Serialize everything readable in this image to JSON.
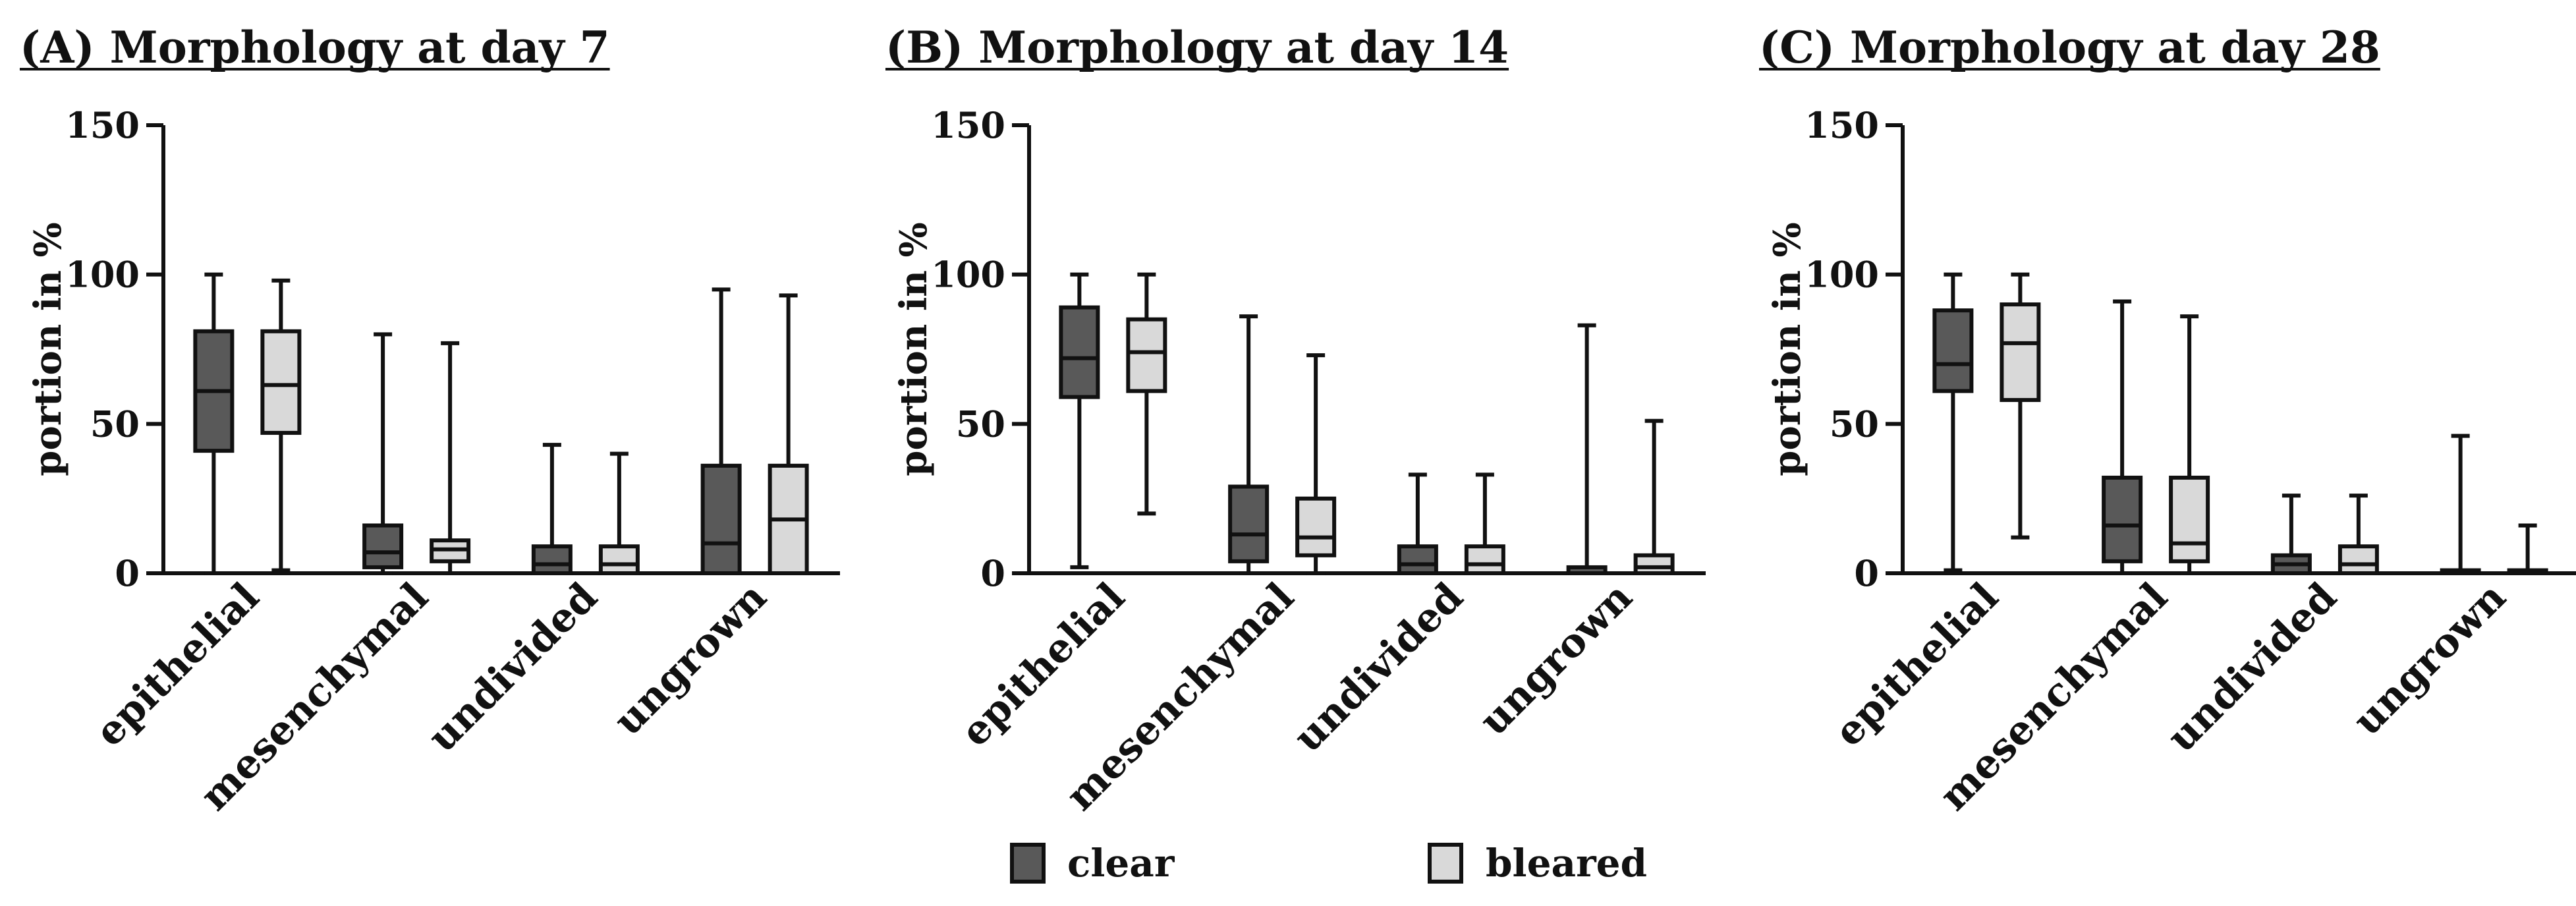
{
  "colors": {
    "clear": "#595959",
    "bleared": "#d9d9d9",
    "line": "#111111"
  },
  "chart_data": [
    {
      "type": "box",
      "title": "(A) Morphology at day 7",
      "ylabel": "portion in %",
      "ylim": [
        0,
        150
      ],
      "yticks": [
        "0",
        "50",
        "100",
        "150"
      ],
      "categories": [
        "epithelial",
        "mesenchymal",
        "undivided",
        "ungrown"
      ],
      "series": [
        {
          "name": "clear",
          "boxes": [
            {
              "min": 0,
              "q1": 41,
              "median": 61,
              "q3": 81,
              "max": 100
            },
            {
              "min": 0,
              "q1": 2,
              "median": 7,
              "q3": 16,
              "max": 80
            },
            {
              "min": 0,
              "q1": 0,
              "median": 3,
              "q3": 9,
              "max": 43
            },
            {
              "min": 0,
              "q1": 0,
              "median": 10,
              "q3": 36,
              "max": 95
            }
          ]
        },
        {
          "name": "bleared",
          "boxes": [
            {
              "min": 1,
              "q1": 47,
              "median": 63,
              "q3": 81,
              "max": 98
            },
            {
              "min": 0,
              "q1": 4,
              "median": 8,
              "q3": 11,
              "max": 77
            },
            {
              "min": 0,
              "q1": 0,
              "median": 3,
              "q3": 9,
              "max": 40
            },
            {
              "min": 0,
              "q1": 0,
              "median": 18,
              "q3": 36,
              "max": 93
            }
          ]
        }
      ]
    },
    {
      "type": "box",
      "title": "(B) Morphology at day 14",
      "ylabel": "portion in %",
      "ylim": [
        0,
        150
      ],
      "yticks": [
        "0",
        "50",
        "100",
        "150"
      ],
      "categories": [
        "epithelial",
        "mesenchymal",
        "undivided",
        "ungrown"
      ],
      "series": [
        {
          "name": "clear",
          "boxes": [
            {
              "min": 2,
              "q1": 59,
              "median": 72,
              "q3": 89,
              "max": 100
            },
            {
              "min": 0,
              "q1": 4,
              "median": 13,
              "q3": 29,
              "max": 86
            },
            {
              "min": 0,
              "q1": 0,
              "median": 3,
              "q3": 9,
              "max": 33
            },
            {
              "min": 0,
              "q1": 0,
              "median": 0,
              "q3": 2,
              "max": 83
            }
          ]
        },
        {
          "name": "bleared",
          "boxes": [
            {
              "min": 20,
              "q1": 61,
              "median": 74,
              "q3": 85,
              "max": 100
            },
            {
              "min": 0,
              "q1": 6,
              "median": 12,
              "q3": 25,
              "max": 73
            },
            {
              "min": 0,
              "q1": 0,
              "median": 3,
              "q3": 9,
              "max": 33
            },
            {
              "min": 0,
              "q1": 0,
              "median": 2,
              "q3": 6,
              "max": 51
            }
          ]
        }
      ]
    },
    {
      "type": "box",
      "title": "(C) Morphology at day 28",
      "ylabel": "portion in %",
      "ylim": [
        0,
        150
      ],
      "yticks": [
        "0",
        "50",
        "100",
        "150"
      ],
      "categories": [
        "epithelial",
        "mesenchymal",
        "undivided",
        "ungrown"
      ],
      "series": [
        {
          "name": "clear",
          "boxes": [
            {
              "min": 1,
              "q1": 61,
              "median": 70,
              "q3": 88,
              "max": 100
            },
            {
              "min": 0,
              "q1": 4,
              "median": 16,
              "q3": 32,
              "max": 91
            },
            {
              "min": 0,
              "q1": 0,
              "median": 3,
              "q3": 6,
              "max": 26
            },
            {
              "min": 0,
              "q1": 0,
              "median": 0,
              "q3": 1,
              "max": 46
            }
          ]
        },
        {
          "name": "bleared",
          "boxes": [
            {
              "min": 12,
              "q1": 58,
              "median": 77,
              "q3": 90,
              "max": 100
            },
            {
              "min": 0,
              "q1": 4,
              "median": 10,
              "q3": 32,
              "max": 86
            },
            {
              "min": 0,
              "q1": 0,
              "median": 3,
              "q3": 9,
              "max": 26
            },
            {
              "min": 0,
              "q1": 0,
              "median": 0,
              "q3": 1,
              "max": 16
            }
          ]
        }
      ]
    }
  ],
  "legend": {
    "items": [
      {
        "label": "clear"
      },
      {
        "label": "bleared"
      }
    ]
  }
}
